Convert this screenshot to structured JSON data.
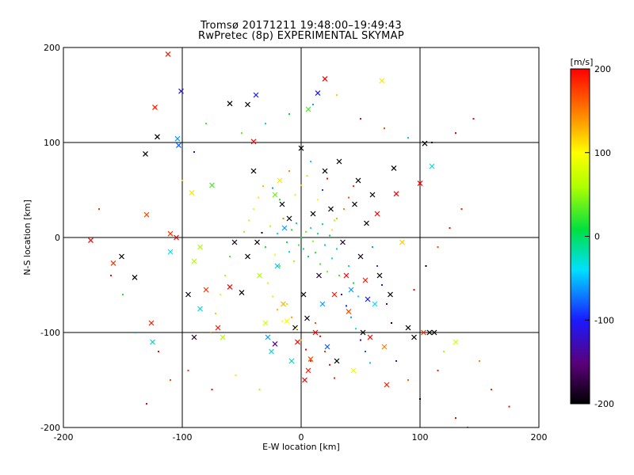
{
  "chart_data": {
    "type": "scatter",
    "title": "Tromsø 20171211 19:48:00–19:49:43",
    "subtitle": "RwPretec (8p) EXPERIMENTAL SKYMAP",
    "xlabel": "E-W location [km]",
    "ylabel": "N-S location [km]",
    "xlim": [
      -200,
      200
    ],
    "ylim": [
      -200,
      200
    ],
    "x_ticks": [
      -200,
      -100,
      0,
      100,
      200
    ],
    "y_ticks": [
      -200,
      -100,
      0,
      100,
      200
    ],
    "x_tick_labels": [
      "-200",
      "-100",
      "0",
      "100",
      "200"
    ],
    "y_tick_labels": [
      "-200",
      "-100",
      "0",
      "100",
      "200"
    ],
    "grid": true,
    "colorbar": {
      "label": "[m/s]",
      "range": [
        -200,
        200
      ],
      "ticks": [
        200,
        100,
        0,
        -100,
        -200
      ],
      "tick_labels": [
        "200",
        "100",
        "0",
        "-100",
        "-200"
      ],
      "colormap": "rainbow (black-purple-blue-cyan-green-yellow-red)"
    },
    "marker_types": [
      "x",
      "dot"
    ],
    "points": [
      [
        -177,
        -3,
        200,
        "x"
      ],
      [
        -158,
        -27,
        180,
        "x"
      ],
      [
        -151,
        -20,
        -200,
        "x"
      ],
      [
        -131,
        88,
        -200,
        "x"
      ],
      [
        -130,
        24,
        170,
        "x"
      ],
      [
        -123,
        137,
        190,
        "x"
      ],
      [
        -121,
        106,
        -200,
        "x"
      ],
      [
        -112,
        193,
        190,
        "x"
      ],
      [
        -110,
        4,
        180,
        "x"
      ],
      [
        -105,
        0,
        200,
        "x"
      ],
      [
        -101,
        154,
        -110,
        "x"
      ],
      [
        -103,
        97,
        -80,
        "x"
      ],
      [
        -104,
        104,
        -60,
        "x"
      ],
      [
        -110,
        -15,
        -40,
        "x"
      ],
      [
        -126,
        -90,
        190,
        "x"
      ],
      [
        -125,
        -110,
        -20,
        "x"
      ],
      [
        -95,
        -60,
        -190,
        "x"
      ],
      [
        -90,
        -25,
        60,
        "x"
      ],
      [
        -92,
        47,
        110,
        "x"
      ],
      [
        -75,
        55,
        30,
        "x"
      ],
      [
        -60,
        -52,
        200,
        "x"
      ],
      [
        -56,
        -5,
        -190,
        "x"
      ],
      [
        -50,
        -58,
        -200,
        "x"
      ],
      [
        -45,
        -20,
        -200,
        "x"
      ],
      [
        -40,
        70,
        -200,
        "x"
      ],
      [
        -37,
        -5,
        -200,
        "x"
      ],
      [
        -35,
        -40,
        60,
        "x"
      ],
      [
        -30,
        -90,
        80,
        "x"
      ],
      [
        -28,
        -105,
        -60,
        "x"
      ],
      [
        -25,
        -120,
        -30,
        "x"
      ],
      [
        -22,
        45,
        40,
        "x"
      ],
      [
        -20,
        -30,
        -50,
        "x"
      ],
      [
        -15,
        -70,
        130,
        "x"
      ],
      [
        -12,
        -88,
        100,
        "x"
      ],
      [
        -10,
        20,
        -200,
        "x"
      ],
      [
        -8,
        -130,
        -20,
        "x"
      ],
      [
        -5,
        -95,
        -200,
        "x"
      ],
      [
        -3,
        -110,
        200,
        "x"
      ],
      [
        0,
        94,
        -200,
        "x"
      ],
      [
        2,
        -60,
        -200,
        "x"
      ],
      [
        3,
        -150,
        200,
        "x"
      ],
      [
        5,
        -85,
        -190,
        "x"
      ],
      [
        6,
        -140,
        190,
        "x"
      ],
      [
        8,
        -128,
        170,
        "x"
      ],
      [
        10,
        25,
        -200,
        "x"
      ],
      [
        12,
        -100,
        200,
        "x"
      ],
      [
        15,
        -40,
        -180,
        "x"
      ],
      [
        18,
        -70,
        -60,
        "x"
      ],
      [
        20,
        70,
        -200,
        "x"
      ],
      [
        22,
        -115,
        -80,
        "x"
      ],
      [
        25,
        30,
        -200,
        "x"
      ],
      [
        28,
        -60,
        190,
        "x"
      ],
      [
        30,
        -130,
        -200,
        "x"
      ],
      [
        32,
        80,
        -200,
        "x"
      ],
      [
        35,
        -5,
        -180,
        "x"
      ],
      [
        38,
        -40,
        200,
        "x"
      ],
      [
        40,
        -78,
        170,
        "x"
      ],
      [
        42,
        -55,
        -60,
        "x"
      ],
      [
        44,
        -140,
        90,
        "x"
      ],
      [
        45,
        35,
        -200,
        "x"
      ],
      [
        48,
        60,
        -200,
        "x"
      ],
      [
        50,
        -20,
        -190,
        "x"
      ],
      [
        52,
        -100,
        -200,
        "x"
      ],
      [
        54,
        -45,
        190,
        "x"
      ],
      [
        55,
        15,
        -200,
        "x"
      ],
      [
        56,
        -65,
        -100,
        "x"
      ],
      [
        58,
        -105,
        200,
        "x"
      ],
      [
        60,
        45,
        -200,
        "x"
      ],
      [
        62,
        -70,
        -40,
        "x"
      ],
      [
        64,
        25,
        200,
        "x"
      ],
      [
        66,
        -40,
        -200,
        "x"
      ],
      [
        68,
        165,
        110,
        "x"
      ],
      [
        70,
        -115,
        150,
        "x"
      ],
      [
        72,
        -155,
        190,
        "x"
      ],
      [
        75,
        -60,
        -200,
        "x"
      ],
      [
        78,
        73,
        -200,
        "x"
      ],
      [
        80,
        46,
        200,
        "x"
      ],
      [
        85,
        -5,
        120,
        "x"
      ],
      [
        90,
        -95,
        -200,
        "x"
      ],
      [
        95,
        -105,
        -200,
        "x"
      ],
      [
        100,
        57,
        200,
        "x"
      ],
      [
        103,
        -100,
        180,
        "x"
      ],
      [
        108,
        -100,
        -200,
        "x"
      ],
      [
        112,
        -100,
        -200,
        "x"
      ],
      [
        130,
        -110,
        80,
        "x"
      ],
      [
        110,
        75,
        -30,
        "x"
      ],
      [
        104,
        99,
        -200,
        "x"
      ],
      [
        -60,
        141,
        -200,
        "x"
      ],
      [
        -45,
        140,
        -200,
        "x"
      ],
      [
        -40,
        101,
        200,
        "x"
      ],
      [
        -38,
        150,
        -100,
        "x"
      ],
      [
        -22,
        -112,
        -140,
        "x"
      ],
      [
        -18,
        60,
        110,
        "x"
      ],
      [
        -16,
        35,
        -190,
        "x"
      ],
      [
        -14,
        10,
        -60,
        "x"
      ],
      [
        6,
        135,
        30,
        "x"
      ],
      [
        14,
        152,
        -100,
        "x"
      ],
      [
        20,
        167,
        200,
        "x"
      ],
      [
        -70,
        -95,
        190,
        "x"
      ],
      [
        -66,
        -105,
        60,
        "x"
      ],
      [
        -90,
        -105,
        -180,
        "x"
      ],
      [
        -85,
        -75,
        -30,
        "x"
      ],
      [
        -80,
        -55,
        180,
        "x"
      ],
      [
        -85,
        -10,
        60,
        "x"
      ],
      [
        -140,
        -42,
        -200,
        "x"
      ],
      [
        -33,
        5,
        -200,
        "dot"
      ],
      [
        -30,
        -10,
        20,
        "dot"
      ],
      [
        -26,
        12,
        60,
        "dot"
      ],
      [
        -22,
        -18,
        90,
        "dot"
      ],
      [
        -20,
        4,
        -20,
        "dot"
      ],
      [
        -18,
        -30,
        40,
        "dot"
      ],
      [
        -15,
        20,
        150,
        "dot"
      ],
      [
        -12,
        -5,
        0,
        "dot"
      ],
      [
        -10,
        -15,
        -40,
        "dot"
      ],
      [
        -8,
        8,
        20,
        "dot"
      ],
      [
        -6,
        -25,
        60,
        "dot"
      ],
      [
        -4,
        15,
        -10,
        "dot"
      ],
      [
        -2,
        -8,
        30,
        "dot"
      ],
      [
        0,
        0,
        10,
        "dot"
      ],
      [
        2,
        -12,
        -20,
        "dot"
      ],
      [
        4,
        6,
        40,
        "dot"
      ],
      [
        6,
        -20,
        0,
        "dot"
      ],
      [
        8,
        10,
        -30,
        "dot"
      ],
      [
        10,
        -4,
        50,
        "dot"
      ],
      [
        12,
        -16,
        20,
        "dot"
      ],
      [
        14,
        4,
        -10,
        "dot"
      ],
      [
        16,
        -28,
        30,
        "dot"
      ],
      [
        18,
        14,
        0,
        "dot"
      ],
      [
        20,
        -8,
        -50,
        "dot"
      ],
      [
        22,
        -36,
        40,
        "dot"
      ],
      [
        24,
        2,
        10,
        "dot"
      ],
      [
        26,
        -22,
        -20,
        "dot"
      ],
      [
        28,
        18,
        60,
        "dot"
      ],
      [
        30,
        -12,
        -10,
        "dot"
      ],
      [
        32,
        -40,
        30,
        "dot"
      ],
      [
        -28,
        -48,
        110,
        "dot"
      ],
      [
        -24,
        -62,
        80,
        "dot"
      ],
      [
        -20,
        -76,
        130,
        "dot"
      ],
      [
        -16,
        -88,
        100,
        "dot"
      ],
      [
        -12,
        -70,
        60,
        "dot"
      ],
      [
        -8,
        -84,
        140,
        "dot"
      ],
      [
        -4,
        -96,
        90,
        "dot"
      ],
      [
        0,
        -108,
        120,
        "dot"
      ],
      [
        4,
        -118,
        200,
        "dot"
      ],
      [
        8,
        -130,
        190,
        "dot"
      ],
      [
        12,
        -90,
        170,
        "dot"
      ],
      [
        16,
        -104,
        200,
        "dot"
      ],
      [
        20,
        -120,
        180,
        "dot"
      ],
      [
        24,
        -134,
        200,
        "dot"
      ],
      [
        28,
        -148,
        190,
        "dot"
      ],
      [
        34,
        -60,
        -120,
        "dot"
      ],
      [
        38,
        -72,
        -100,
        "dot"
      ],
      [
        42,
        -84,
        -60,
        "dot"
      ],
      [
        46,
        -96,
        -30,
        "dot"
      ],
      [
        50,
        -108,
        -140,
        "dot"
      ],
      [
        54,
        -120,
        -80,
        "dot"
      ],
      [
        58,
        -132,
        -50,
        "dot"
      ],
      [
        40,
        -30,
        -20,
        "dot"
      ],
      [
        44,
        -48,
        10,
        "dot"
      ],
      [
        48,
        -62,
        -40,
        "dot"
      ],
      [
        -40,
        30,
        90,
        "dot"
      ],
      [
        -36,
        42,
        110,
        "dot"
      ],
      [
        -32,
        54,
        130,
        "dot"
      ],
      [
        -44,
        18,
        70,
        "dot"
      ],
      [
        -48,
        6,
        50,
        "dot"
      ],
      [
        36,
        30,
        150,
        "dot"
      ],
      [
        40,
        42,
        170,
        "dot"
      ],
      [
        44,
        54,
        190,
        "dot"
      ],
      [
        30,
        20,
        130,
        "dot"
      ],
      [
        26,
        8,
        110,
        "dot"
      ],
      [
        -60,
        -20,
        30,
        "dot"
      ],
      [
        -64,
        -40,
        60,
        "dot"
      ],
      [
        -68,
        -60,
        90,
        "dot"
      ],
      [
        -72,
        -80,
        120,
        "dot"
      ],
      [
        -76,
        -100,
        150,
        "dot"
      ],
      [
        60,
        -10,
        -60,
        "dot"
      ],
      [
        64,
        -30,
        -90,
        "dot"
      ],
      [
        68,
        -50,
        -120,
        "dot"
      ],
      [
        72,
        -70,
        -150,
        "dot"
      ],
      [
        76,
        -90,
        -180,
        "dot"
      ],
      [
        -50,
        110,
        40,
        "dot"
      ],
      [
        -30,
        120,
        -30,
        "dot"
      ],
      [
        -10,
        130,
        10,
        "dot"
      ],
      [
        10,
        140,
        -60,
        "dot"
      ],
      [
        30,
        150,
        120,
        "dot"
      ],
      [
        50,
        125,
        200,
        "dot"
      ],
      [
        70,
        115,
        170,
        "dot"
      ],
      [
        90,
        105,
        -20,
        "dot"
      ],
      [
        110,
        100,
        -200,
        "dot"
      ],
      [
        130,
        110,
        200,
        "dot"
      ],
      [
        145,
        125,
        200,
        "dot"
      ],
      [
        140,
        -200,
        200,
        "dot"
      ],
      [
        150,
        -130,
        150,
        "dot"
      ],
      [
        160,
        -160,
        190,
        "dot"
      ],
      [
        175,
        -178,
        200,
        "dot"
      ],
      [
        130,
        -190,
        200,
        "dot"
      ],
      [
        -110,
        -150,
        170,
        "dot"
      ],
      [
        -130,
        -175,
        200,
        "dot"
      ],
      [
        -150,
        -60,
        20,
        "dot"
      ],
      [
        -140,
        -100,
        -60,
        "dot"
      ],
      [
        -160,
        -40,
        200,
        "dot"
      ],
      [
        -170,
        30,
        180,
        "dot"
      ],
      [
        -100,
        60,
        120,
        "dot"
      ],
      [
        -90,
        90,
        -110,
        "dot"
      ],
      [
        -80,
        120,
        30,
        "dot"
      ],
      [
        -120,
        -120,
        200,
        "dot"
      ],
      [
        -95,
        -140,
        180,
        "dot"
      ],
      [
        -75,
        -160,
        200,
        "dot"
      ],
      [
        -55,
        -145,
        110,
        "dot"
      ],
      [
        -35,
        -160,
        60,
        "dot"
      ],
      [
        80,
        -130,
        -100,
        "dot"
      ],
      [
        90,
        -150,
        160,
        "dot"
      ],
      [
        100,
        -170,
        -200,
        "dot"
      ],
      [
        115,
        -140,
        190,
        "dot"
      ],
      [
        120,
        -120,
        60,
        "dot"
      ],
      [
        95,
        -55,
        200,
        "dot"
      ],
      [
        105,
        -30,
        -200,
        "dot"
      ],
      [
        115,
        -10,
        170,
        "dot"
      ],
      [
        125,
        10,
        200,
        "dot"
      ],
      [
        135,
        30,
        190,
        "dot"
      ],
      [
        -5,
        45,
        80,
        "dot"
      ],
      [
        0,
        55,
        120,
        "dot"
      ],
      [
        5,
        65,
        60,
        "dot"
      ],
      [
        -10,
        70,
        150,
        "dot"
      ],
      [
        8,
        80,
        -30,
        "dot"
      ],
      [
        14,
        40,
        100,
        "dot"
      ],
      [
        18,
        50,
        -90,
        "dot"
      ],
      [
        22,
        62,
        200,
        "dot"
      ],
      [
        -18,
        40,
        20,
        "dot"
      ],
      [
        -24,
        52,
        -60,
        "dot"
      ]
    ]
  }
}
